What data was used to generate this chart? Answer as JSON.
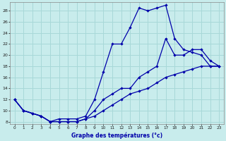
{
  "xlabel": "Graphe des températures (°c)",
  "background_color": "#c8ecec",
  "grid_color": "#a8d8d8",
  "line_color": "#0000aa",
  "xlim": [
    -0.5,
    23.5
  ],
  "ylim": [
    7.5,
    29.5
  ],
  "yticks": [
    8,
    10,
    12,
    14,
    16,
    18,
    20,
    22,
    24,
    26,
    28
  ],
  "xticks": [
    0,
    1,
    2,
    3,
    4,
    5,
    6,
    7,
    8,
    9,
    10,
    11,
    12,
    13,
    14,
    15,
    16,
    17,
    18,
    19,
    20,
    21,
    22,
    23
  ],
  "line_max": {
    "x": [
      0,
      1,
      2,
      3,
      4,
      5,
      6,
      7,
      8,
      9,
      10,
      11,
      12,
      13,
      14,
      15,
      16,
      17,
      18,
      19,
      20,
      21,
      22,
      23
    ],
    "y": [
      12,
      10,
      9.5,
      9,
      8,
      8.5,
      8.5,
      8.5,
      9,
      12,
      17,
      22,
      22,
      25,
      28.5,
      28,
      28.5,
      29,
      23,
      21,
      20.5,
      20,
      18,
      18
    ]
  },
  "line_avg": {
    "x": [
      0,
      1,
      2,
      3,
      4,
      5,
      6,
      7,
      8,
      9,
      10,
      11,
      12,
      13,
      14,
      15,
      16,
      17,
      18,
      19,
      20,
      21,
      22,
      23
    ],
    "y": [
      12,
      10,
      9.5,
      9,
      8,
      8,
      8,
      8,
      8.5,
      10,
      12,
      13,
      14,
      14,
      16,
      17,
      18,
      23,
      20,
      20,
      21,
      21,
      19,
      18
    ]
  },
  "line_min": {
    "x": [
      0,
      1,
      2,
      3,
      4,
      5,
      6,
      7,
      8,
      9,
      10,
      11,
      12,
      13,
      14,
      15,
      16,
      17,
      18,
      19,
      20,
      21,
      22,
      23
    ],
    "y": [
      12,
      10,
      9.5,
      9,
      8,
      8,
      8,
      8,
      8.5,
      9,
      10,
      11,
      12,
      13,
      13.5,
      14,
      15,
      16,
      16.5,
      17,
      17.5,
      18,
      18,
      18
    ]
  }
}
